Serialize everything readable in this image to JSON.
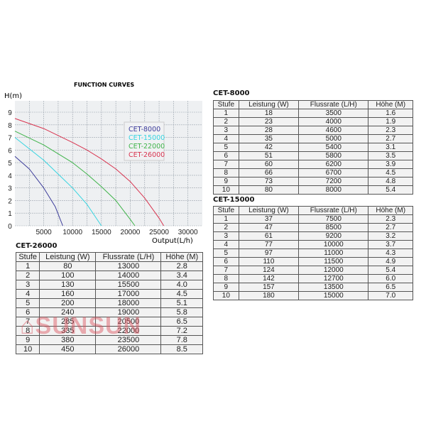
{
  "chart_data": {
    "type": "line",
    "title": "FUNCTION CURVES",
    "xlabel": "Output(L/h)",
    "ylabel": "H(m)",
    "xlim": [
      0,
      32500
    ],
    "ylim": [
      0,
      9.9
    ],
    "xticks": [
      5000,
      10000,
      15000,
      20000,
      25000,
      30000
    ],
    "yticks": [
      0,
      1,
      2,
      3,
      4,
      5,
      6,
      7,
      8,
      9
    ],
    "grid": true,
    "legend_position": "top-right",
    "series": [
      {
        "name": "CET-8000",
        "color": "#3b3b9a",
        "x": [
          0,
          2500,
          5000,
          7000,
          8300
        ],
        "y": [
          5.5,
          4.5,
          3,
          1.5,
          0
        ]
      },
      {
        "name": "CET-15000",
        "color": "#35d4e0",
        "x": [
          0,
          5000,
          10000,
          12500,
          15000
        ],
        "y": [
          7,
          5.2,
          3,
          1.7,
          0
        ]
      },
      {
        "name": "CET-22000",
        "color": "#3fb34a",
        "x": [
          0,
          5000,
          10000,
          12500,
          15000,
          17500,
          20000,
          20800
        ],
        "y": [
          7.5,
          6.4,
          5,
          4.1,
          3.1,
          2,
          0.5,
          0
        ]
      },
      {
        "name": "CET-26000",
        "color": "#d8344f",
        "x": [
          0,
          5000,
          10000,
          12500,
          15000,
          17500,
          20000,
          22500,
          25000,
          25800
        ],
        "y": [
          8.5,
          7.7,
          6.6,
          6,
          5.3,
          4.5,
          3.5,
          2.2,
          0.6,
          0
        ]
      }
    ]
  },
  "headers": [
    "Stufe",
    "Leistung (W)",
    "Flussrate (L/H)",
    "Höhe (M)"
  ],
  "tables": {
    "t26": {
      "title": "CET-26000",
      "rows": [
        [
          "1",
          "80",
          "13000",
          "2.8"
        ],
        [
          "2",
          "100",
          "14000",
          "3.4"
        ],
        [
          "3",
          "130",
          "15500",
          "4.0"
        ],
        [
          "4",
          "160",
          "17000",
          "4.5"
        ],
        [
          "5",
          "200",
          "18000",
          "5.1"
        ],
        [
          "6",
          "240",
          "19000",
          "5.8"
        ],
        [
          "7",
          "285",
          "20500",
          "6.5"
        ],
        [
          "8",
          "335",
          "22000",
          "7.2"
        ],
        [
          "9",
          "380",
          "23500",
          "7.8"
        ],
        [
          "10",
          "450",
          "26000",
          "8.5"
        ]
      ]
    },
    "t8": {
      "title": "CET-8000",
      "rows": [
        [
          "1",
          "18",
          "3500",
          "1.6"
        ],
        [
          "2",
          "23",
          "4000",
          "1.9"
        ],
        [
          "3",
          "28",
          "4600",
          "2.3"
        ],
        [
          "4",
          "35",
          "5000",
          "2.7"
        ],
        [
          "5",
          "42",
          "5400",
          "3.1"
        ],
        [
          "6",
          "51",
          "5800",
          "3.5"
        ],
        [
          "7",
          "60",
          "6200",
          "3.9"
        ],
        [
          "8",
          "66",
          "6700",
          "4.5"
        ],
        [
          "9",
          "73",
          "7200",
          "4.8"
        ],
        [
          "10",
          "80",
          "8000",
          "5.4"
        ]
      ]
    },
    "t15": {
      "title": "CET-15000",
      "rows": [
        [
          "1",
          "37",
          "7500",
          "2.3"
        ],
        [
          "2",
          "47",
          "8500",
          "2.7"
        ],
        [
          "3",
          "61",
          "9200",
          "3.2"
        ],
        [
          "4",
          "77",
          "10000",
          "3.7"
        ],
        [
          "5",
          "97",
          "11000",
          "4.3"
        ],
        [
          "6",
          "110",
          "11500",
          "4.9"
        ],
        [
          "7",
          "124",
          "12000",
          "5.4"
        ],
        [
          "8",
          "142",
          "12700",
          "6.0"
        ],
        [
          "9",
          "157",
          "13500",
          "6.5"
        ],
        [
          "10",
          "180",
          "15000",
          "7.0"
        ]
      ]
    }
  },
  "watermark": "SUNSUN"
}
